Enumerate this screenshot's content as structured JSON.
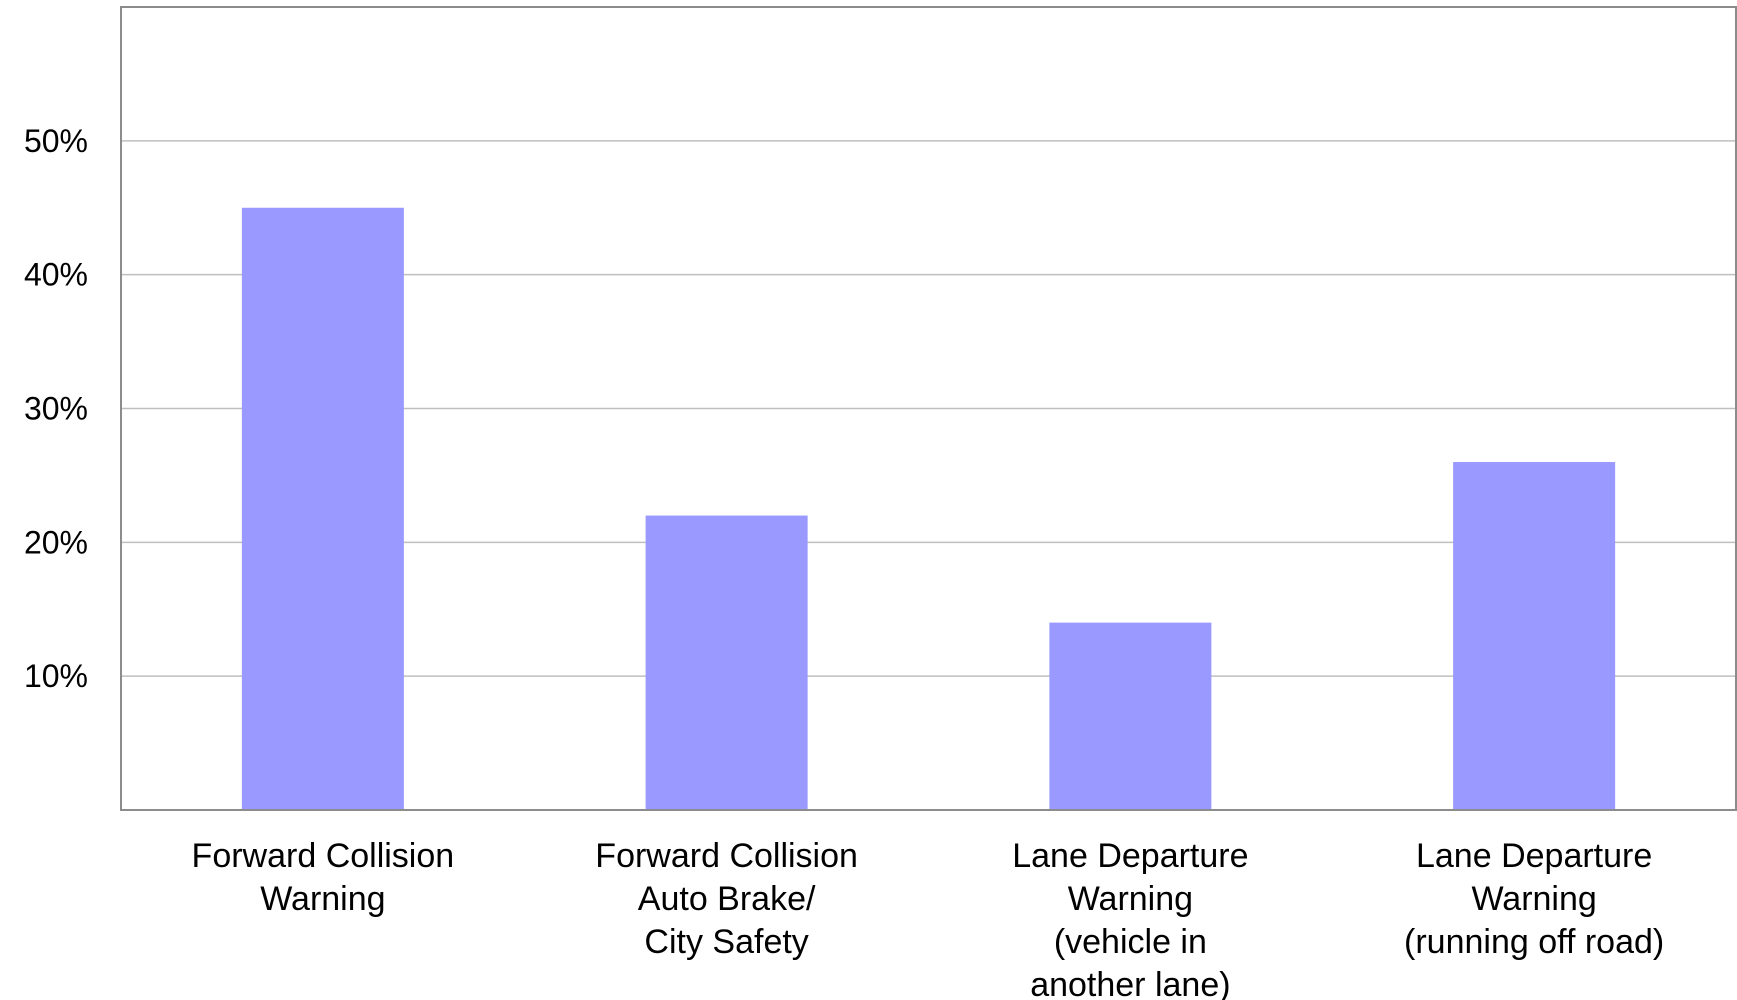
{
  "chart_data": {
    "type": "bar",
    "title": "",
    "xlabel": "",
    "ylabel": "",
    "categories": [
      [
        "Forward Collision",
        "Warning"
      ],
      [
        "Forward Collision",
        "Auto Brake/",
        "City Safety"
      ],
      [
        "Lane Departure",
        "Warning",
        "(vehicle in",
        "another lane)"
      ],
      [
        "Lane Departure",
        "Warning",
        "(running off road)"
      ]
    ],
    "values": [
      45,
      22,
      14,
      26
    ],
    "ylim": [
      0,
      60
    ],
    "yticks": [
      10,
      20,
      30,
      40,
      50
    ],
    "ytick_labels": [
      "10%",
      "20%",
      "30%",
      "40%",
      "50%"
    ],
    "grid": true,
    "legend": "none",
    "bar_color": "#9999ff",
    "grid_color": "#bfbfbf",
    "frame_color": "#8c8c8c"
  }
}
